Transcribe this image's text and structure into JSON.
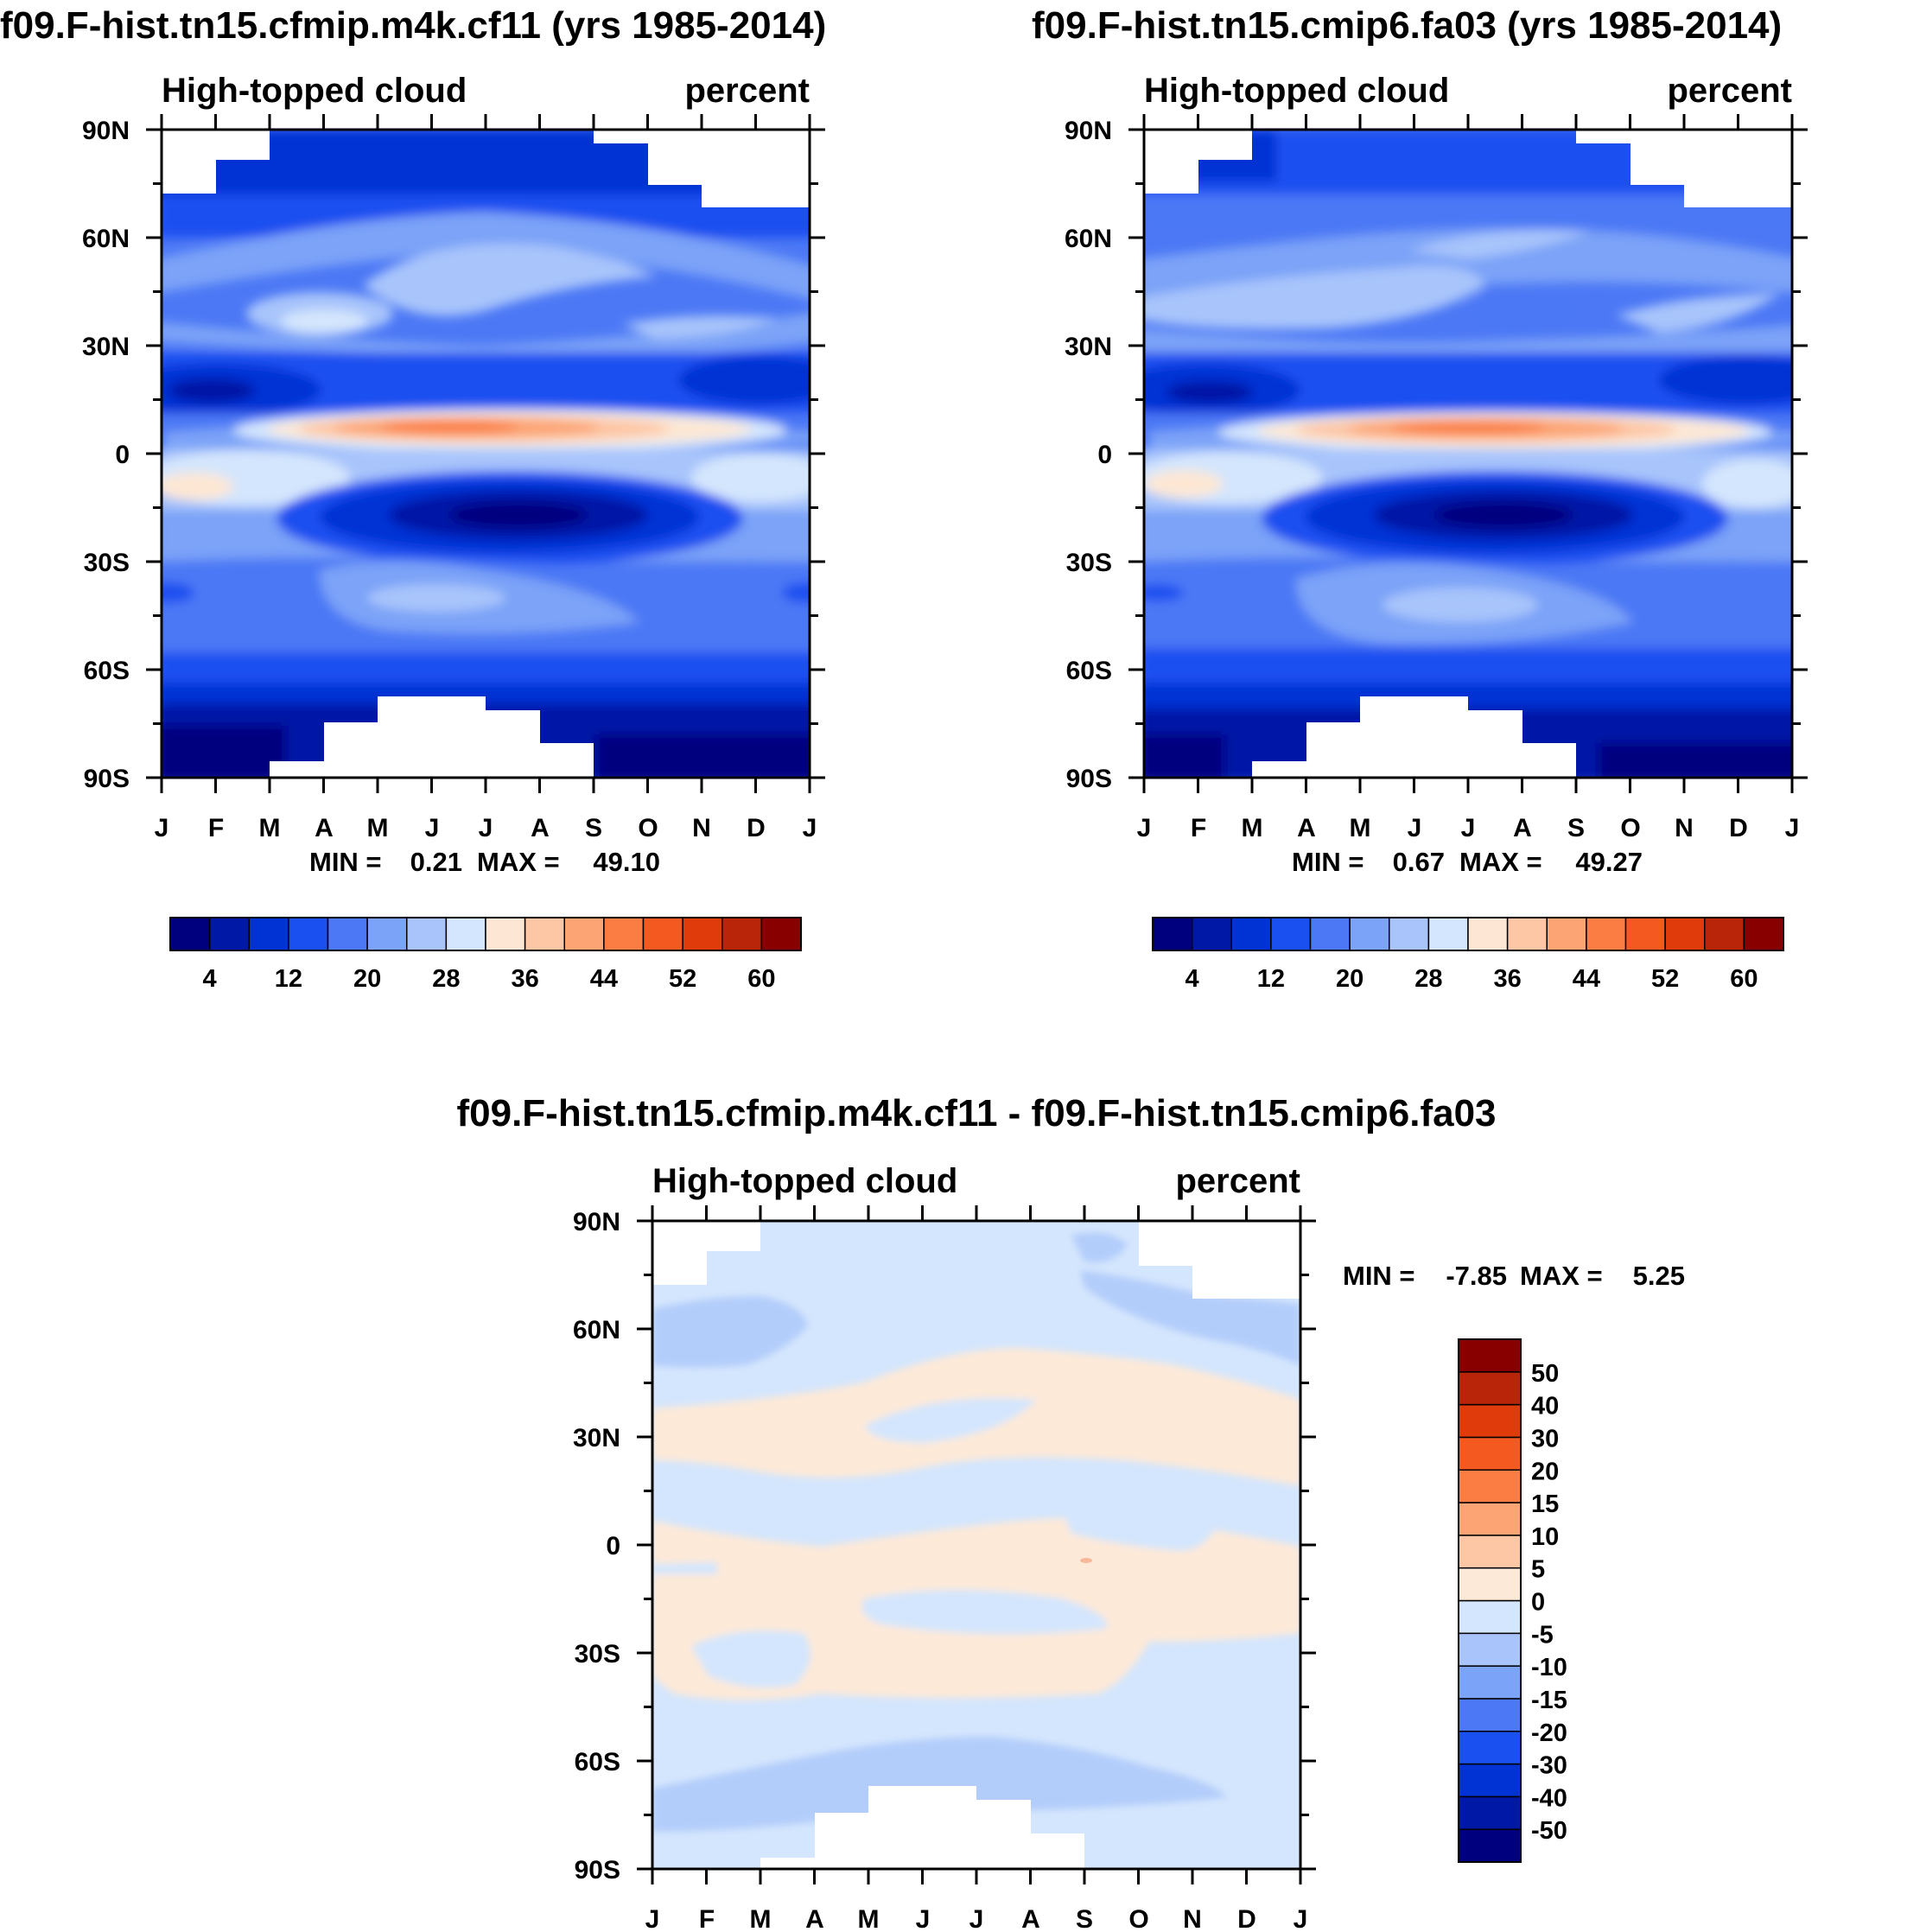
{
  "chart_data": [
    {
      "type": "heatmap",
      "title": "f09.F-hist.tn15.cfmip.m4k.cf11 (yrs 1985-2014)",
      "left_label": "High-topped cloud",
      "right_label": "percent",
      "x_ticks": [
        "J",
        "F",
        "M",
        "A",
        "M",
        "J",
        "J",
        "A",
        "S",
        "O",
        "N",
        "D",
        "J"
      ],
      "y_ticks": [
        "90N",
        "60N",
        "30N",
        "0",
        "30S",
        "60S",
        "90S"
      ],
      "ylim": [
        -90,
        90
      ],
      "min_label": "MIN =",
      "min_value": "0.21",
      "max_label": "MAX =",
      "max_value": "49.10",
      "colorbar": {
        "orientation": "horizontal",
        "colors": [
          "#00007f",
          "#0018a6",
          "#0032d4",
          "#1a50f0",
          "#4c78f5",
          "#7ba3f8",
          "#a8c4fb",
          "#d4e6fd",
          "#fde7d4",
          "#fdc6a5",
          "#fca474",
          "#fb7d44",
          "#f45a20",
          "#e03b0a",
          "#b82508",
          "#880000"
        ],
        "labels": [
          "4",
          "12",
          "20",
          "28",
          "36",
          "44",
          "52",
          "60"
        ]
      }
    },
    {
      "type": "heatmap",
      "title": "f09.F-hist.tn15.cmip6.fa03 (yrs 1985-2014)",
      "left_label": "High-topped cloud",
      "right_label": "percent",
      "x_ticks": [
        "J",
        "F",
        "M",
        "A",
        "M",
        "J",
        "J",
        "A",
        "S",
        "O",
        "N",
        "D",
        "J"
      ],
      "y_ticks": [
        "90N",
        "60N",
        "30N",
        "0",
        "30S",
        "60S",
        "90S"
      ],
      "ylim": [
        -90,
        90
      ],
      "min_label": "MIN =",
      "min_value": "0.67",
      "max_label": "MAX =",
      "max_value": "49.27",
      "colorbar": {
        "orientation": "horizontal",
        "colors": [
          "#00007f",
          "#0018a6",
          "#0032d4",
          "#1a50f0",
          "#4c78f5",
          "#7ba3f8",
          "#a8c4fb",
          "#d4e6fd",
          "#fde7d4",
          "#fdc6a5",
          "#fca474",
          "#fb7d44",
          "#f45a20",
          "#e03b0a",
          "#b82508",
          "#880000"
        ],
        "labels": [
          "4",
          "12",
          "20",
          "28",
          "36",
          "44",
          "52",
          "60"
        ]
      }
    },
    {
      "type": "heatmap",
      "title": "f09.F-hist.tn15.cfmip.m4k.cf11 - f09.F-hist.tn15.cmip6.fa03",
      "left_label": "High-topped cloud",
      "right_label": "percent",
      "x_ticks": [
        "J",
        "F",
        "M",
        "A",
        "M",
        "J",
        "J",
        "A",
        "S",
        "O",
        "N",
        "D",
        "J"
      ],
      "y_ticks": [
        "90N",
        "60N",
        "30N",
        "0",
        "30S",
        "60S",
        "90S"
      ],
      "ylim": [
        -90,
        90
      ],
      "min_label": "MIN =",
      "min_value": "-7.85",
      "max_label": "MAX =",
      "max_value": "5.25",
      "colorbar": {
        "orientation": "vertical",
        "colors": [
          "#00007f",
          "#0018a6",
          "#0032d4",
          "#1a50f0",
          "#4c78f5",
          "#7ba3f8",
          "#a8c4fb",
          "#d4e6fd",
          "#fde9d8",
          "#fdc6a5",
          "#fca474",
          "#fb7d44",
          "#f45a20",
          "#e03b0a",
          "#b82508",
          "#880000"
        ],
        "labels": [
          "-50",
          "-40",
          "-30",
          "-20",
          "-15",
          "-10",
          "-5",
          "0",
          "5",
          "10",
          "15",
          "20",
          "30",
          "40",
          "50"
        ]
      }
    }
  ]
}
